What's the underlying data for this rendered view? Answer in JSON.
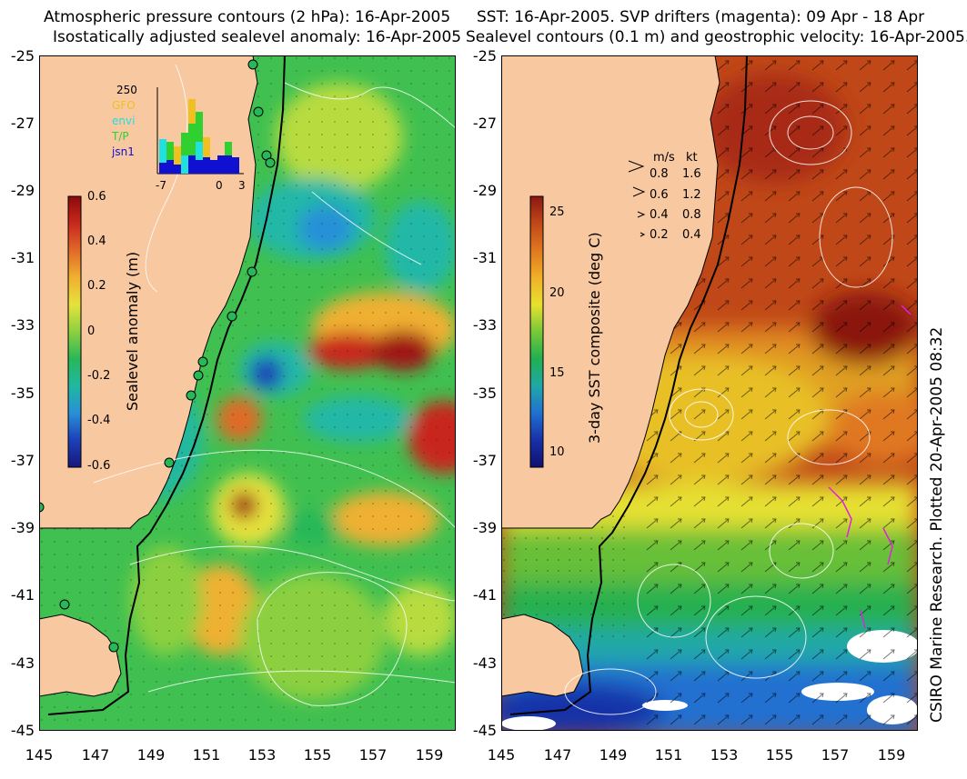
{
  "left_panel": {
    "title_line1": "Atmospheric pressure contours (2 hPa): 16-Apr-2005",
    "title_line2": "Isostatically adjusted sealevel anomaly: 16-Apr-2005",
    "colorbar": {
      "title": "Sealevel anomaly (m)",
      "ticks": [
        "0.6",
        "0.4",
        "0.2",
        "0",
        "-0.2",
        "-0.4",
        "-0.6"
      ],
      "colors": [
        "#8b0a0a",
        "#c8281c",
        "#e06a28",
        "#f0b030",
        "#e6e23c",
        "#8cd040",
        "#28b858",
        "#20b8a0",
        "#2890d8",
        "#1c40b8",
        "#16187a"
      ]
    },
    "histogram": {
      "max_label": "250",
      "axis_labels": [
        "-7",
        "0",
        "3"
      ],
      "legend": [
        {
          "name": "GFO",
          "color": "#f0c020"
        },
        {
          "name": "envi",
          "color": "#20e0e0"
        },
        {
          "name": "T/P",
          "color": "#30d030"
        },
        {
          "name": "jsn1",
          "color": "#1010d0"
        }
      ]
    }
  },
  "right_panel": {
    "title_line1": "SST: 16-Apr-2005. SVP drifters (magenta): 09 Apr - 18 Apr",
    "title_line2": "Sealevel contours (0.1 m) and geostrophic velocity: 16-Apr-2005.",
    "colorbar": {
      "title": "3-day SST composite (deg C)",
      "ticks": [
        "25",
        "20",
        "15",
        "10"
      ],
      "colors": [
        "#8a1810",
        "#c04818",
        "#e07820",
        "#f0b028",
        "#e8e030",
        "#78c838",
        "#20b050",
        "#20a8a8",
        "#2070d0",
        "#1830a8",
        "#101070"
      ]
    },
    "velocity_legend": {
      "header_ms": "m/s",
      "header_kt": "kt",
      "rows": [
        {
          "ms": "0.8",
          "kt": "1.6"
        },
        {
          "ms": "0.6",
          "kt": "1.2"
        },
        {
          "ms": "0.4",
          "kt": "0.8"
        },
        {
          "ms": "0.2",
          "kt": "0.4"
        }
      ]
    }
  },
  "axes": {
    "y_ticks": [
      "-25",
      "-27",
      "-29",
      "-31",
      "-33",
      "-35",
      "-37",
      "-39",
      "-41",
      "-43",
      "-45"
    ],
    "x_ticks": [
      "145",
      "147",
      "149",
      "151",
      "153",
      "155",
      "157",
      "159"
    ]
  },
  "credit": "CSIRO Marine Research. Plotted 20-Apr-2005 08:32",
  "colors": {
    "land": "#f8c8a0",
    "coast": "#000000"
  }
}
